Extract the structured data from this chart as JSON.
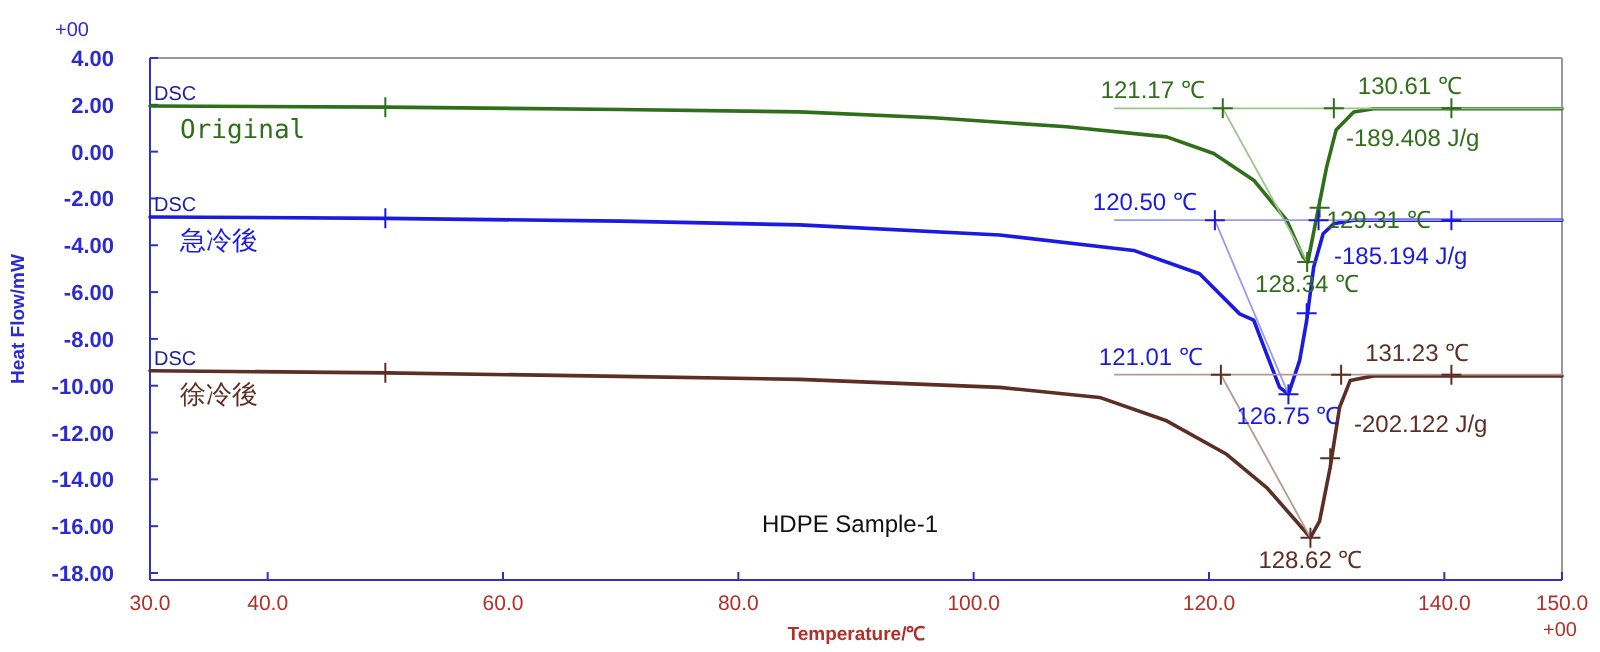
{
  "chart_data": {
    "type": "line",
    "xlabel": "Temperature/℃",
    "ylabel": "Heat Flow/mW",
    "xlim": [
      30,
      150
    ],
    "ylim": [
      -18.3,
      4
    ],
    "xticks": [
      {
        "value": 30,
        "label": "30.0"
      },
      {
        "value": 40,
        "label": "40.0"
      },
      {
        "value": 60,
        "label": "60.0"
      },
      {
        "value": 80,
        "label": "80.0"
      },
      {
        "value": 100,
        "label": "100.0"
      },
      {
        "value": 120,
        "label": "120.0"
      },
      {
        "value": 140,
        "label": "140.0"
      },
      {
        "value": 150,
        "label": "150.0"
      }
    ],
    "yticks": [
      {
        "value": 4,
        "label": "4.00"
      },
      {
        "value": 2,
        "label": "2.00"
      },
      {
        "value": 0,
        "label": "0.00"
      },
      {
        "value": -2,
        "label": "-2.00"
      },
      {
        "value": -4,
        "label": "-4.00"
      },
      {
        "value": -6,
        "label": "-6.00"
      },
      {
        "value": -8,
        "label": "-8.00"
      },
      {
        "value": -10,
        "label": "-10.00"
      },
      {
        "value": -12,
        "label": "-12.00"
      },
      {
        "value": -14,
        "label": "-14.00"
      },
      {
        "value": -16,
        "label": "-16.00"
      },
      {
        "value": -18,
        "label": "-18.00"
      }
    ],
    "grid": false,
    "line_style": "solid",
    "series": [
      {
        "name": "Original",
        "type": "line",
        "color": "#2f6f1a",
        "x": [
          30,
          50,
          70,
          85.2,
          96.6,
          107.9,
          116.4,
          120.4,
          123.8,
          126.6,
          128.0,
          128.4,
          129.1,
          130.0,
          130.8,
          132.3,
          134.0,
          150
        ],
        "values": [
          1.95,
          1.9,
          1.8,
          1.7,
          1.45,
          1.06,
          0.63,
          -0.08,
          -1.22,
          -2.93,
          -4.5,
          -4.71,
          -2.93,
          -0.65,
          0.92,
          1.69,
          1.83,
          1.83
        ]
      },
      {
        "name": "急冷後",
        "type": "line",
        "color": "#1a1ae0",
        "x": [
          30,
          50,
          70,
          85.2,
          102.2,
          113.6,
          119.2,
          122.6,
          123.8,
          124.9,
          126.0,
          126.75,
          127.7,
          128.3,
          128.9,
          129.7,
          130.6,
          132.3,
          150
        ],
        "values": [
          -2.79,
          -2.85,
          -2.97,
          -3.13,
          -3.56,
          -4.22,
          -5.22,
          -6.93,
          -7.2,
          -8.65,
          -10.07,
          -10.36,
          -8.93,
          -7.22,
          -4.93,
          -3.51,
          -3.08,
          -2.93,
          -2.93
        ]
      },
      {
        "name": "徐冷後",
        "type": "line",
        "color": "#5c2e24",
        "x": [
          30,
          50,
          70,
          85.2,
          102.2,
          110.7,
          116.4,
          121.5,
          124.9,
          127.4,
          128.62,
          129.4,
          130.3,
          131.1,
          132.0,
          134.0,
          150
        ],
        "values": [
          -9.36,
          -9.45,
          -9.6,
          -9.73,
          -10.07,
          -10.5,
          -11.5,
          -12.93,
          -14.35,
          -15.78,
          -16.49,
          -15.78,
          -13.49,
          -10.92,
          -9.78,
          -9.58,
          -9.58
        ]
      },
      {
        "type": "line",
        "color": "#9cc48c",
        "x": [
          112,
          150
        ],
        "values": [
          1.85,
          1.85
        ]
      },
      {
        "type": "line",
        "color": "#9cc48c",
        "x": [
          121.17,
          128.34
        ],
        "values": [
          1.85,
          -4.71
        ]
      },
      {
        "type": "line",
        "color": "#9a9af0",
        "x": [
          112,
          150
        ],
        "values": [
          -2.93,
          -2.93
        ]
      },
      {
        "type": "line",
        "color": "#9a9af0",
        "x": [
          120.5,
          126.75
        ],
        "values": [
          -2.93,
          -10.36
        ]
      },
      {
        "type": "line",
        "color": "#b49c94",
        "x": [
          112,
          150
        ],
        "values": [
          -9.53,
          -9.53
        ]
      },
      {
        "type": "line",
        "color": "#b49c94",
        "x": [
          121.01,
          128.62
        ],
        "values": [
          -9.53,
          -16.49
        ]
      },
      {
        "type": "scatter",
        "marker": "cross",
        "color": "#2f6f1a",
        "x": [
          50,
          121.17,
          130.61,
          140.6,
          128.34,
          129.4
        ],
        "values": [
          1.9,
          1.85,
          1.85,
          1.85,
          -4.71,
          -2.4
        ]
      },
      {
        "type": "scatter",
        "marker": "cross",
        "color": "#1a1ae0",
        "x": [
          50,
          120.5,
          129.31,
          140.6,
          126.75,
          128.3
        ],
        "values": [
          -2.85,
          -2.93,
          -2.93,
          -2.93,
          -10.36,
          -6.9
        ]
      },
      {
        "type": "scatter",
        "marker": "cross",
        "color": "#5c2e24",
        "x": [
          50,
          121.01,
          131.23,
          140.6,
          128.62,
          130.3
        ],
        "values": [
          -9.45,
          -9.53,
          -9.53,
          -9.53,
          -16.49,
          -13.1
        ]
      }
    ],
    "annotations": [
      {
        "text": "DSC",
        "x": 30,
        "y": 1.95
      },
      {
        "text": "121.17 ℃",
        "x": 121.17,
        "y": 1.85
      },
      {
        "text": "130.61 ℃",
        "x": 130.61,
        "y": 1.85
      },
      {
        "text": "128.34 ℃",
        "x": 128.34,
        "y": -4.71
      },
      {
        "text": "DSC",
        "x": 30,
        "y": -2.79
      },
      {
        "text": "120.50 ℃",
        "x": 120.5,
        "y": -2.93
      },
      {
        "text": "129.31 ℃",
        "x": 129.31,
        "y": -2.93
      },
      {
        "text": "126.75 ℃",
        "x": 126.75,
        "y": -10.36
      },
      {
        "text": "DSC",
        "x": 30,
        "y": -9.36
      },
      {
        "text": "121.01 ℃",
        "x": 121.01,
        "y": -9.53
      },
      {
        "text": "131.23 ℃",
        "x": 131.23,
        "y": -9.53
      },
      {
        "text": "128.62 ℃",
        "x": 128.62,
        "y": -16.49
      },
      "-189.408 J/g",
      "-185.194 J/g",
      "-202.122 J/g",
      "HDPE Sample-1",
      "+00",
      "+00"
    ]
  }
}
